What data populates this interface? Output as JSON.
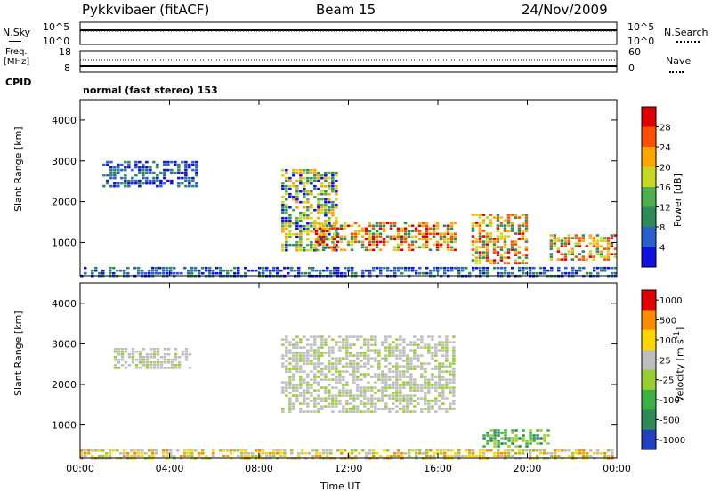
{
  "header": {
    "station": "Pykkvibaer (fitACF)",
    "beam": "Beam 15",
    "date": "24/Nov/2009"
  },
  "top_panels": {
    "nsky_label": "N.Sky",
    "nsearch_label": "N.Search",
    "nsky_ticks": [
      "10^5",
      "10^0"
    ],
    "nsearch_ticks": [
      "10^5",
      "10^0"
    ],
    "freq_label": "Freq.",
    "freq_unit": "[MHz]",
    "freq_ticks": [
      "18",
      "8"
    ],
    "nave_label": "Nave",
    "nave_ticks": [
      "60",
      "0"
    ],
    "cpid_label": "CPID",
    "cpid_text": "normal (fast stereo) 153"
  },
  "chart_data": [
    {
      "type": "heatmap",
      "title": "",
      "ylabel": "Slant Range [km]",
      "xlabel": "",
      "ylim": [
        180,
        4500
      ],
      "yticks": [
        "1000",
        "2000",
        "3000",
        "4000"
      ],
      "colorbar": {
        "label": "Power [dB]",
        "ticks": [
          "4",
          "8",
          "12",
          "16",
          "20",
          "24",
          "28"
        ],
        "colors": [
          "#1010e0",
          "#2b5fd0",
          "#2e8b57",
          "#4caf50",
          "#c8d820",
          "#ffa500",
          "#ff5000",
          "#e00000"
        ]
      },
      "regions": [
        {
          "t": [
            1.0,
            5.2
          ],
          "r": [
            2400,
            3000
          ],
          "level": "low"
        },
        {
          "t": [
            9.0,
            11.5
          ],
          "r": [
            800,
            2800
          ],
          "level": "mid"
        },
        {
          "t": [
            10.5,
            16.8
          ],
          "r": [
            800,
            1500
          ],
          "level": "high"
        },
        {
          "t": [
            17.5,
            20.0
          ],
          "r": [
            500,
            1700
          ],
          "level": "high"
        },
        {
          "t": [
            21.0,
            24.0
          ],
          "r": [
            600,
            1200
          ],
          "level": "high"
        },
        {
          "t": [
            0.0,
            24.0
          ],
          "r": [
            180,
            400
          ],
          "level": "low"
        }
      ]
    },
    {
      "type": "heatmap",
      "title": "",
      "ylabel": "Slant Range [km]",
      "xlabel": "Time UT",
      "ylim": [
        180,
        4500
      ],
      "yticks": [
        "1000",
        "2000",
        "3000",
        "4000"
      ],
      "xticks": [
        "00:00",
        "04:00",
        "08:00",
        "12:00",
        "16:00",
        "20:00",
        "00:00"
      ],
      "xlim_hours": [
        0,
        24
      ],
      "colorbar": {
        "label": "Velocity [m s",
        "label_sup": "-1",
        "label_end": "]",
        "ticks": [
          "1000",
          "500",
          "100",
          "25",
          "-25",
          "-100",
          "-500",
          "-1000"
        ],
        "colors": [
          "#2040c0",
          "#2e8b57",
          "#3cb043",
          "#9acd32",
          "#bebebe",
          "#ffd700",
          "#ff8c00",
          "#e00000"
        ]
      },
      "regions": [
        {
          "t": [
            1.5,
            5.0
          ],
          "r": [
            2400,
            2900
          ],
          "level": "gray"
        },
        {
          "t": [
            9.0,
            16.8
          ],
          "r": [
            1300,
            3200
          ],
          "level": "gray"
        },
        {
          "t": [
            18.0,
            21.0
          ],
          "r": [
            500,
            900
          ],
          "level": "green"
        },
        {
          "t": [
            0.0,
            24.0
          ],
          "r": [
            200,
            400
          ],
          "level": "yellow"
        }
      ]
    }
  ]
}
